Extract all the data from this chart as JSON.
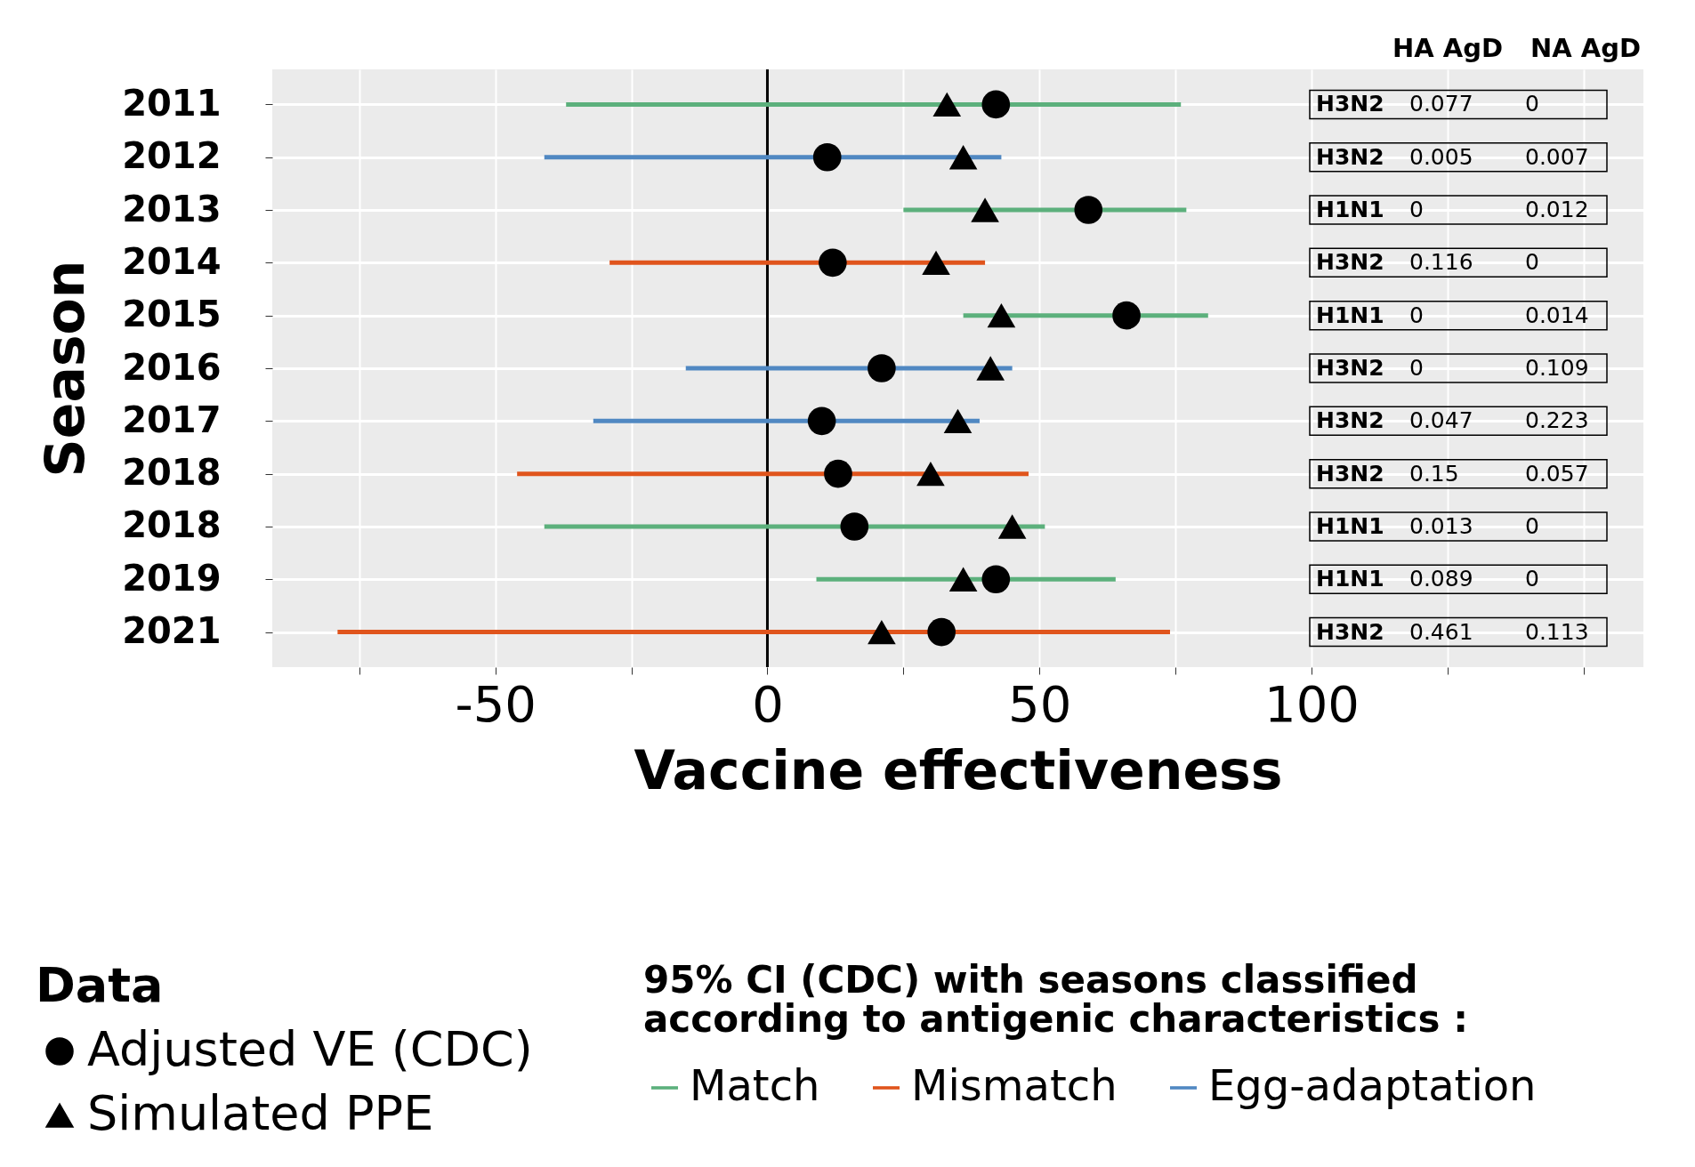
{
  "chart_data": {
    "type": "bar",
    "orientation": "horizontal",
    "xlabel": "Vaccine effectiveness",
    "ylabel": "Season",
    "legend_title": [
      "Data",
      "95% CI (CDC) with seasons classified according to antigenic characteristics :"
    ],
    "categories": [
      "2011",
      "2012",
      "2013",
      "2014",
      "2015",
      "2016",
      "2017",
      "2018",
      "2018",
      "2019",
      "2021"
    ],
    "xlim": [
      -91,
      161
    ],
    "xticks": [
      {
        "value": -75,
        "label": null
      },
      -50,
      {
        "value": -25,
        "label": null
      },
      0,
      {
        "value": 25,
        "label": null
      },
      50,
      {
        "value": 75,
        "label": null
      },
      100,
      {
        "value": 125,
        "label": null
      },
      {
        "value": 150,
        "label": null
      }
    ],
    "grid": true,
    "legend": "bottom",
    "ref_lines": [
      {
        "axis": "x",
        "value": 0,
        "color": "#000000"
      }
    ],
    "series": [
      {
        "name": "Match",
        "type": "bar",
        "color": "#5cb07c",
        "base": [
          -37,
          null,
          25,
          null,
          36,
          null,
          null,
          null,
          -41,
          9,
          null
        ],
        "values": [
          113,
          null,
          52,
          null,
          45,
          null,
          null,
          null,
          92,
          55,
          null
        ]
      },
      {
        "name": "Mismatch",
        "type": "bar",
        "color": "#e0541c",
        "base": [
          null,
          null,
          null,
          -29,
          null,
          null,
          null,
          -46,
          null,
          null,
          -79
        ],
        "values": [
          null,
          null,
          null,
          69,
          null,
          null,
          null,
          94,
          null,
          null,
          153
        ]
      },
      {
        "name": "Egg-adaptation",
        "type": "bar",
        "color": "#5088c2",
        "base": [
          null,
          -41,
          null,
          null,
          null,
          -15,
          -32,
          null,
          null,
          null,
          null
        ],
        "values": [
          null,
          84,
          null,
          null,
          null,
          60,
          71,
          null,
          null,
          null,
          null
        ]
      },
      {
        "name": "Adjusted VE (CDC)",
        "type": "scatter",
        "marker": "circle",
        "color": "#000000",
        "values": [
          42,
          11,
          59,
          12,
          66,
          21,
          10,
          13,
          16,
          42,
          32
        ]
      },
      {
        "name": "Simulated PPE",
        "type": "scatter",
        "marker": "triangle",
        "color": "#000000",
        "values": [
          33,
          36,
          40,
          31,
          43,
          41,
          35,
          30,
          45,
          36,
          21
        ]
      }
    ],
    "annotations": [
      "HA AgD",
      "NA AgD",
      "H3N2",
      "0.077",
      "0",
      "H3N2",
      "0.005",
      "0.007",
      "H1N1",
      "0",
      "0.012",
      "H3N2",
      "0.116",
      "0",
      "H1N1",
      "0",
      "0.014",
      "H3N2",
      "0",
      "0.109",
      "H3N2",
      "0.047",
      "0.223",
      "H3N2",
      "0.15",
      "0.057",
      "H1N1",
      "0.013",
      "0",
      "H1N1",
      "0.089",
      "0",
      "H3N2",
      "0.461",
      "0.113"
    ]
  }
}
